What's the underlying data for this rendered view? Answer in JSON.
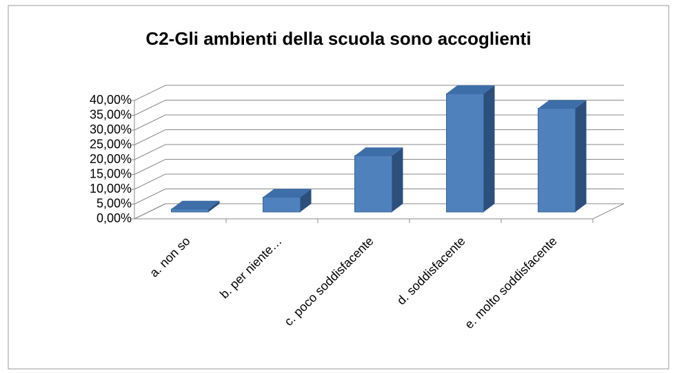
{
  "chart_data": {
    "type": "bar3d",
    "title": "C2-Gli ambienti della scuola sono accoglienti",
    "categories": [
      "a. non so",
      "b. per niente…",
      "c. poco soddisfacente",
      "d. soddisfacente",
      "e. molto soddisfacente"
    ],
    "values": [
      1,
      5,
      19,
      40,
      35
    ],
    "color": "#4f81bd",
    "ylim": [
      0,
      40
    ],
    "yticks": [
      {
        "value": 0,
        "label": "0,00%"
      },
      {
        "value": 5,
        "label": "5,00%"
      },
      {
        "value": 10,
        "label": "10,00%"
      },
      {
        "value": 15,
        "label": "15,00%"
      },
      {
        "value": 20,
        "label": "20,00%"
      },
      {
        "value": 25,
        "label": "25,00%"
      },
      {
        "value": 30,
        "label": "30,00%"
      },
      {
        "value": 35,
        "label": "35,00%"
      },
      {
        "value": 40,
        "label": "40,00%"
      }
    ],
    "grid": true
  }
}
